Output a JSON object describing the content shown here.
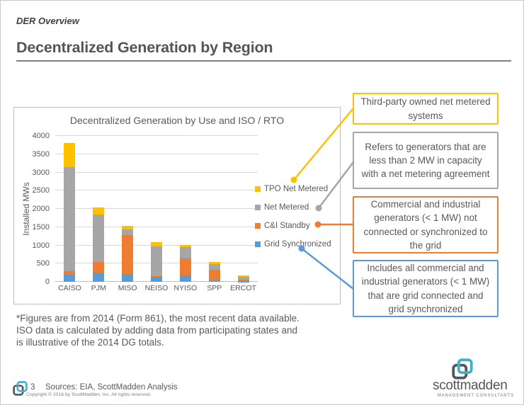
{
  "header": {
    "eyebrow": "DER Overview",
    "title": "Decentralized Generation by Region"
  },
  "chart_data": {
    "type": "bar",
    "stacked": true,
    "title": "Decentralized Generation by Use and ISO / RTO",
    "xlabel": "",
    "ylabel": "Installed MWs",
    "ylim": [
      0,
      4000
    ],
    "ytick_step": 500,
    "grid": true,
    "legend_position": "right",
    "categories": [
      "CAISO",
      "PJM",
      "MISO",
      "NEISO",
      "NYISO",
      "SPP",
      "ERCOT"
    ],
    "series": [
      {
        "name": "Grid Synchronized",
        "color": "#5B9BD5",
        "values": [
          200,
          250,
          220,
          130,
          175,
          40,
          10
        ]
      },
      {
        "name": "C&I Standby",
        "color": "#ED7D31",
        "values": [
          85,
          300,
          1060,
          30,
          465,
          290,
          50
        ]
      },
      {
        "name": "Net Metered",
        "color": "#A6A6A6",
        "values": [
          2865,
          1300,
          160,
          810,
          310,
          160,
          80
        ]
      },
      {
        "name": "TPO Net Metered",
        "color": "#FFC000",
        "values": [
          650,
          180,
          90,
          110,
          70,
          50,
          35
        ]
      }
    ],
    "legend_order": [
      "TPO Net Metered",
      "Net Metered",
      "C&I Standby",
      "Grid Synchronized"
    ]
  },
  "callouts": [
    {
      "text": "Third-party owned net metered systems",
      "color": "#FFC000"
    },
    {
      "text": "Refers to generators that are less than 2 MW in capacity with a net metering agreement",
      "color": "#A6A6A6"
    },
    {
      "text": "Commercial and industrial generators (< 1 MW) not connected or synchronized to the grid",
      "color": "#ED7D31"
    },
    {
      "text": "Includes all commercial and industrial generators (< 1 MW) that are grid connected and grid synchronized",
      "color": "#5B9BD5"
    }
  ],
  "footnote": "*Figures are from 2014 (Form 861), the most recent data available.\nISO data is calculated by adding data from participating states and\nis illustrative of the 2014 DG totals.",
  "footer": {
    "page_number": "3",
    "sources": "Sources: EIA, ScottMadden Analysis",
    "copyright": "Copyright © 2016 by ScottMadden, Inc. All rights reserved.",
    "logo_text": "scottmadden",
    "logo_tagline": "MANAGEMENT CONSULTANTS"
  },
  "brand": {
    "teal": "#3EB1C8",
    "dark_gray": "#53565A"
  }
}
